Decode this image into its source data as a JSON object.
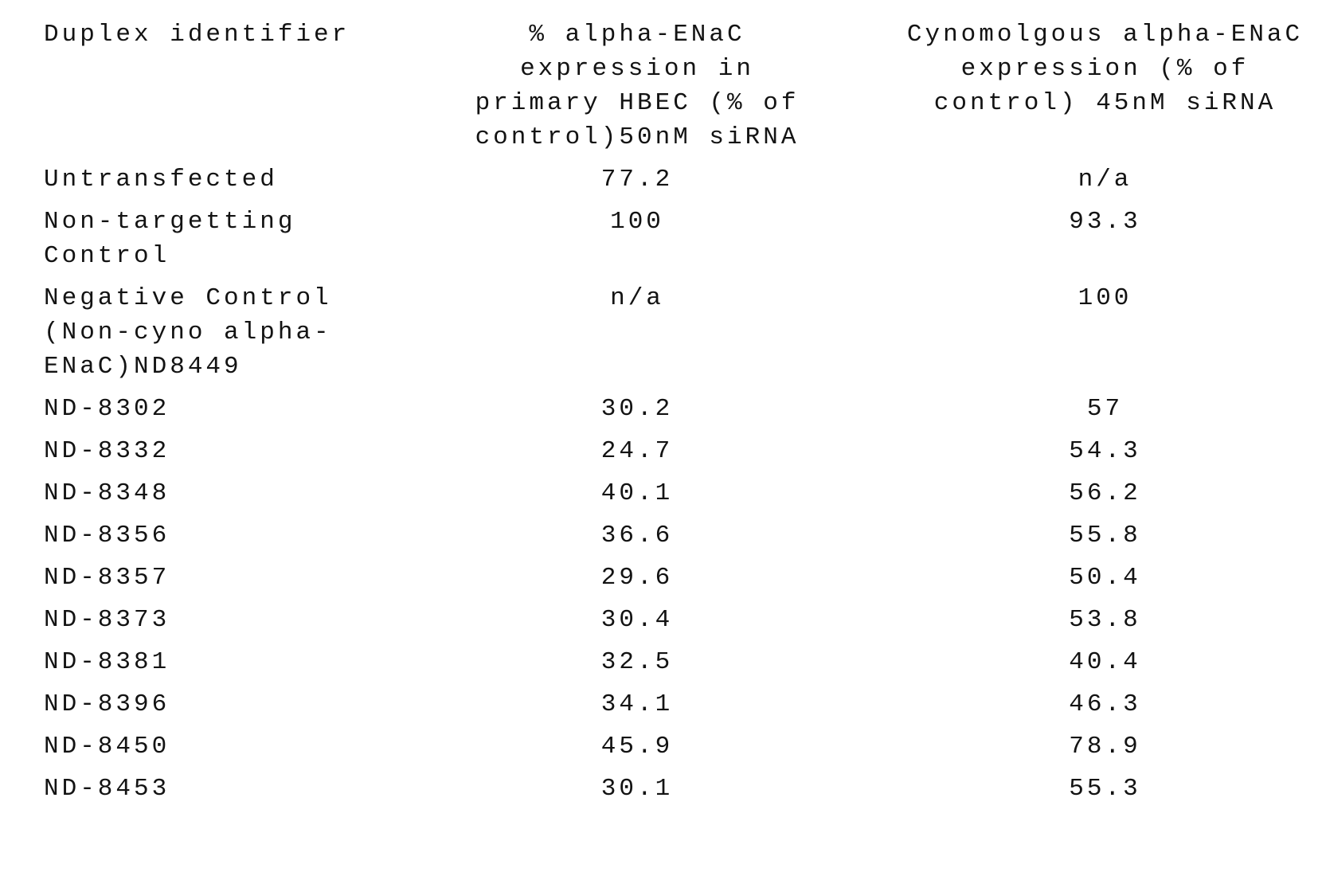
{
  "table": {
    "headers": {
      "duplex": "Duplex identifier",
      "hbec": "% alpha-ENaC\nexpression in\nprimary HBEC (% of\ncontrol)50nM siRNA",
      "cyno": "Cynomolgous alpha-ENaC\nexpression (% of\ncontrol) 45nM siRNA"
    },
    "rows": [
      {
        "duplex": "Untransfected",
        "hbec": "77.2",
        "cyno": "n/a"
      },
      {
        "duplex": "Non-targetting\nControl",
        "hbec": "100",
        "cyno": "93.3"
      },
      {
        "duplex": "Negative Control\n(Non-cyno alpha-\nENaC)ND8449",
        "hbec": "n/a",
        "cyno": "100"
      },
      {
        "duplex": "ND-8302",
        "hbec": "30.2",
        "cyno": "57"
      },
      {
        "duplex": "ND-8332",
        "hbec": "24.7",
        "cyno": "54.3"
      },
      {
        "duplex": "ND-8348",
        "hbec": "40.1",
        "cyno": "56.2"
      },
      {
        "duplex": "ND-8356",
        "hbec": "36.6",
        "cyno": "55.8"
      },
      {
        "duplex": "ND-8357",
        "hbec": "29.6",
        "cyno": "50.4"
      },
      {
        "duplex": "ND-8373",
        "hbec": "30.4",
        "cyno": "53.8"
      },
      {
        "duplex": "ND-8381",
        "hbec": "32.5",
        "cyno": "40.4"
      },
      {
        "duplex": "ND-8396",
        "hbec": "34.1",
        "cyno": "46.3"
      },
      {
        "duplex": "ND-8450",
        "hbec": "45.9",
        "cyno": "78.9"
      },
      {
        "duplex": "ND-8453",
        "hbec": "30.1",
        "cyno": "55.3"
      }
    ],
    "text_color": "#131313",
    "background_color": "#ffffff"
  }
}
